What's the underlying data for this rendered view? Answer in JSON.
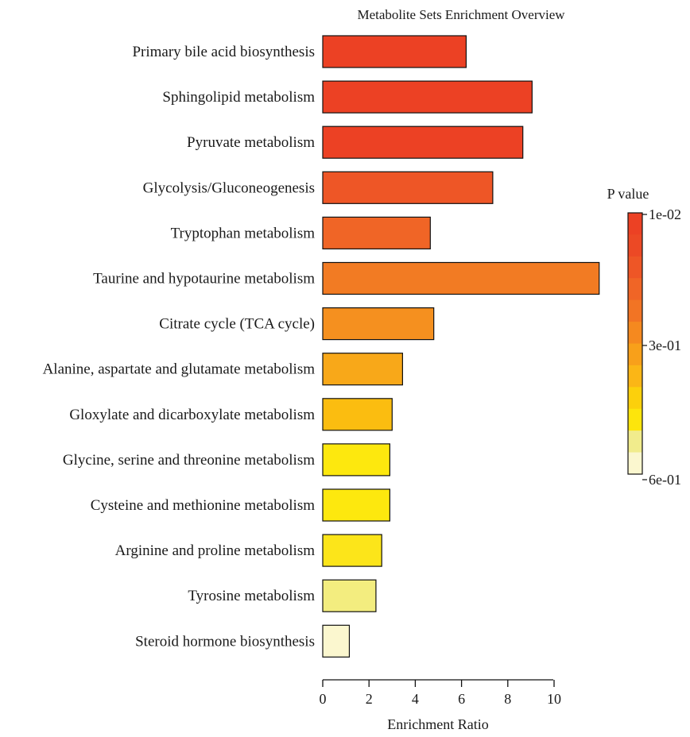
{
  "chart_data": {
    "type": "bar",
    "orientation": "horizontal",
    "title": "Metabolite Sets Enrichment Overview",
    "xlabel": "Enrichment Ratio",
    "ylabel": "",
    "xlim": [
      0,
      12
    ],
    "xticks": [
      0,
      2,
      4,
      6,
      8,
      10
    ],
    "grid": false,
    "categories": [
      "Primary bile acid biosynthesis",
      "Sphingolipid metabolism",
      "Pyruvate metabolism",
      "Glycolysis/Gluconeogenesis",
      "Tryptophan metabolism",
      "Taurine and hypotaurine metabolism",
      "Citrate cycle (TCA cycle)",
      "Alanine, aspartate and glutamate metabolism",
      "Gloxylate and dicarboxylate metabolism",
      "Glycine, serine and threonine metabolism",
      "Cysteine and methionine metabolism",
      "Arginine and proline metabolism",
      "Tyrosine metabolism",
      "Steroid hormone biosynthesis"
    ],
    "values": [
      6.2,
      9.05,
      8.65,
      7.35,
      4.65,
      11.95,
      4.8,
      3.45,
      3.0,
      2.9,
      2.9,
      2.55,
      2.3,
      1.15
    ],
    "bar_colors": [
      "#ec4124",
      "#ec4124",
      "#ec4124",
      "#ee5626",
      "#f06526",
      "#f27b23",
      "#f5901f",
      "#f8a819",
      "#fbbd10",
      "#fde80e",
      "#fde80e",
      "#fce51a",
      "#f3ed7f",
      "#fbf7cf"
    ],
    "legend": {
      "title": "P value",
      "placement": "right",
      "tick_labels": [
        "1e-02",
        "3e-01",
        "6e-01"
      ],
      "colors": [
        "#ec4124",
        "#ec4925",
        "#ee5626",
        "#f06526",
        "#f27424",
        "#f5891f",
        "#f8a01a",
        "#fbb616",
        "#fcd00c",
        "#fde50c",
        "#f1ec8c",
        "#fbf7cf"
      ]
    }
  }
}
